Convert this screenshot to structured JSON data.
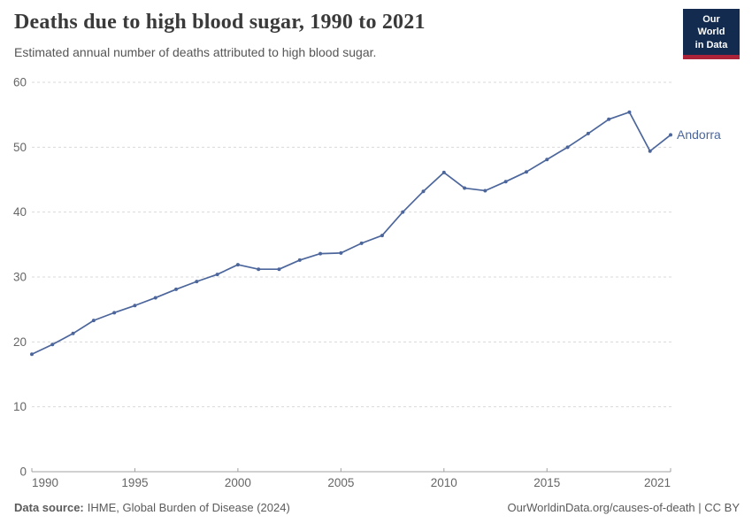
{
  "header": {
    "title": "Deaths due to high blood sugar, 1990 to 2021",
    "subtitle": "Estimated annual number of deaths attributed to high blood sugar."
  },
  "logo": {
    "line1": "Our World",
    "line2": "in Data"
  },
  "chart_data": {
    "type": "line",
    "title": "Deaths due to high blood sugar, 1990 to 2021",
    "entity": "Andorra",
    "xlabel": "",
    "ylabel": "",
    "xlim": [
      1990,
      2021
    ],
    "ylim": [
      0,
      60
    ],
    "xticks": [
      1990,
      1995,
      2000,
      2005,
      2010,
      2015,
      2021
    ],
    "yticks": [
      0,
      10,
      20,
      30,
      40,
      50,
      60
    ],
    "grid": "dashed-horizontal",
    "legend_position": "right-of-last-point",
    "x": [
      1990,
      1991,
      1992,
      1993,
      1994,
      1995,
      1996,
      1997,
      1998,
      1999,
      2000,
      2001,
      2002,
      2003,
      2004,
      2005,
      2006,
      2007,
      2008,
      2009,
      2010,
      2011,
      2012,
      2013,
      2014,
      2015,
      2016,
      2017,
      2018,
      2019,
      2020,
      2021
    ],
    "series": [
      {
        "name": "Andorra",
        "values": [
          18.1,
          19.6,
          21.3,
          23.3,
          24.5,
          25.6,
          26.8,
          28.1,
          29.3,
          30.4,
          31.9,
          31.2,
          31.2,
          32.6,
          33.6,
          33.7,
          35.2,
          36.4,
          40.0,
          43.2,
          46.1,
          43.7,
          43.3,
          44.7,
          46.2,
          48.1,
          50.0,
          52.1,
          54.3,
          55.4,
          49.4,
          51.9
        ]
      }
    ]
  },
  "colors": {
    "line": "#4c669c",
    "grid": "#d9d9d9",
    "axis": "#a0a0a0",
    "tick_label": "#666666",
    "title": "#3a3a3a",
    "subtitle": "#555555",
    "footer": "#5b5b5b",
    "logo_bg": "#122b4e",
    "logo_red": "#aa2339"
  },
  "footer": {
    "source_label": "Data source:",
    "source_value": "IHME, Global Burden of Disease (2024)",
    "credit": "OurWorldinData.org/causes-of-death | CC BY"
  }
}
